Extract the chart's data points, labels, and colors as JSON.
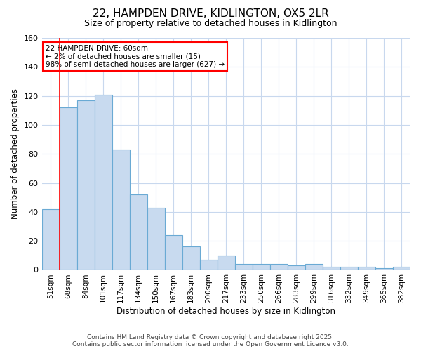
{
  "title_line1": "22, HAMPDEN DRIVE, KIDLINGTON, OX5 2LR",
  "title_line2": "Size of property relative to detached houses in Kidlington",
  "xlabel": "Distribution of detached houses by size in Kidlington",
  "ylabel": "Number of detached properties",
  "categories": [
    "51sqm",
    "68sqm",
    "84sqm",
    "101sqm",
    "117sqm",
    "134sqm",
    "150sqm",
    "167sqm",
    "183sqm",
    "200sqm",
    "217sqm",
    "233sqm",
    "250sqm",
    "266sqm",
    "283sqm",
    "299sqm",
    "316sqm",
    "332sqm",
    "349sqm",
    "365sqm",
    "382sqm"
  ],
  "values": [
    42,
    112,
    117,
    121,
    83,
    52,
    43,
    24,
    16,
    7,
    10,
    4,
    4,
    4,
    3,
    4,
    2,
    2,
    2,
    1,
    2
  ],
  "bar_color": "#c8daef",
  "bar_edge_color": "#6aaad4",
  "background_color": "#ffffff",
  "plot_bg_color": "#ffffff",
  "grid_color": "#c8d8ee",
  "ylim": [
    0,
    160
  ],
  "yticks": [
    0,
    20,
    40,
    60,
    80,
    100,
    120,
    140,
    160
  ],
  "annotation_line1": "22 HAMPDEN DRIVE: 60sqm",
  "annotation_line2": "← 2% of detached houses are smaller (15)",
  "annotation_line3": "98% of semi-detached houses are larger (627) →",
  "vline_x_index": 0.5,
  "footer_line1": "Contains HM Land Registry data © Crown copyright and database right 2025.",
  "footer_line2": "Contains public sector information licensed under the Open Government Licence v3.0."
}
